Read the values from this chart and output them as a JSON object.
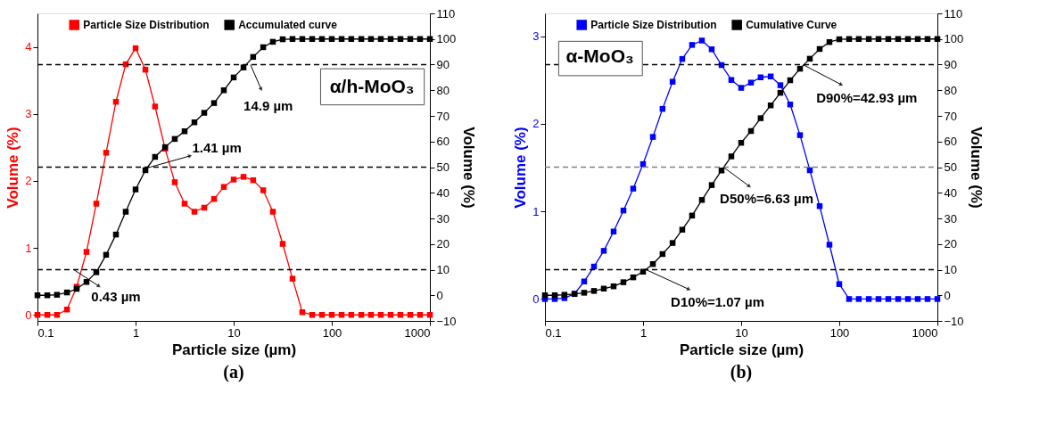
{
  "chart_data": [
    {
      "type": "line",
      "xlabel": "Particle size (µm)",
      "ylabel": "Volume (%)",
      "y2label": "Volume (%)",
      "x": [
        0.1,
        0.126,
        0.158,
        0.2,
        0.251,
        0.316,
        0.398,
        0.501,
        0.631,
        0.794,
        1,
        1.26,
        1.58,
        2,
        2.51,
        3.16,
        3.98,
        5.01,
        6.31,
        7.94,
        10,
        12.6,
        15.8,
        20,
        25.1,
        31.6,
        39.8,
        50.1,
        63.1,
        79.4,
        100,
        126,
        158,
        200,
        251,
        316,
        398,
        501,
        631,
        794,
        1000
      ],
      "series": [
        {
          "name": "Particle Size Distribution",
          "color": "#ff0000",
          "values": [
            0,
            0,
            0,
            0.08,
            0.42,
            0.94,
            1.66,
            2.42,
            3.18,
            3.74,
            3.98,
            3.66,
            3.11,
            2.48,
            1.98,
            1.66,
            1.54,
            1.6,
            1.73,
            1.91,
            2.02,
            2.06,
            2.01,
            1.86,
            1.54,
            1.06,
            0.54,
            0.04,
            0,
            0,
            0,
            0,
            0,
            0,
            0,
            0,
            0,
            0,
            0,
            0,
            0
          ]
        },
        {
          "name": "Accumulated curve",
          "color": "#000000",
          "axis": "y2",
          "values": [
            0,
            0,
            0.2,
            1.1,
            2.5,
            5.2,
            9,
            15.8,
            23.7,
            32.6,
            41.3,
            48.8,
            54,
            57.8,
            61,
            64,
            67.5,
            71.2,
            75,
            80,
            85,
            88.9,
            93,
            96.8,
            98.9,
            99.9,
            100,
            100,
            100,
            100,
            100,
            100,
            100,
            100,
            100,
            100,
            100,
            100,
            100,
            100,
            100
          ]
        }
      ],
      "xlim": [
        0.1,
        1000
      ],
      "xticks": [
        0.1,
        1,
        10,
        100,
        1000
      ],
      "log": "x",
      "ylim": [
        -0.09,
        4.5
      ],
      "yticks": [
        0,
        1,
        2,
        3,
        4
      ],
      "y2lim": [
        -10,
        110
      ],
      "y2ticks": [
        -10,
        0,
        10,
        20,
        30,
        40,
        50,
        60,
        70,
        80,
        90,
        100,
        110
      ],
      "ref_lines": [
        {
          "axis": "y2",
          "value": 90,
          "label": null,
          "color": "#000000",
          "line_style": "dashed"
        },
        {
          "axis": "y2",
          "value": 50,
          "label": null,
          "color": "#000000",
          "line_style": "dashed"
        },
        {
          "axis": "y2",
          "value": 10,
          "label": null,
          "color": "#000000",
          "line_style": "dashed"
        }
      ],
      "annotations": [
        "(a)",
        "α/h-MoO₃",
        "14.9 µm",
        "1.41 µm",
        "0.43 µm"
      ],
      "grid": false,
      "legend": "top",
      "marker": "square",
      "line_style": "solid"
    },
    {
      "type": "line",
      "xlabel": "Particle size (µm)",
      "ylabel": "Volume (%)",
      "y2label": "Volume (%)",
      "x": [
        0.1,
        0.126,
        0.158,
        0.2,
        0.251,
        0.316,
        0.398,
        0.501,
        0.631,
        0.794,
        1,
        1.26,
        1.58,
        2,
        2.51,
        3.16,
        3.98,
        5.01,
        6.31,
        7.94,
        10,
        12.6,
        15.8,
        20,
        25.1,
        31.6,
        39.8,
        50.1,
        63.1,
        79.4,
        100,
        126,
        158,
        200,
        251,
        316,
        398,
        501,
        631,
        794,
        1000
      ],
      "series": [
        {
          "name": "Particle Size Distribution",
          "color": "#0000ff",
          "values": [
            0,
            0,
            0.01,
            0.06,
            0.2,
            0.37,
            0.55,
            0.77,
            1.01,
            1.26,
            1.54,
            1.85,
            2.17,
            2.48,
            2.74,
            2.9,
            2.95,
            2.85,
            2.67,
            2.5,
            2.41,
            2.47,
            2.53,
            2.54,
            2.44,
            2.22,
            1.87,
            1.47,
            1.06,
            0.62,
            0.17,
            0,
            0,
            0,
            0,
            0,
            0,
            0,
            0,
            0,
            0
          ]
        },
        {
          "name": "Cumulative Curve",
          "color": "#000000",
          "axis": "y2",
          "values": [
            0,
            0,
            0.2,
            0.5,
            1.0,
            1.7,
            2.6,
            3.5,
            5.1,
            7.0,
            9.2,
            12.2,
            16.1,
            20.4,
            25.6,
            31.1,
            37.2,
            43,
            48.7,
            54.2,
            59.5,
            64.1,
            69.1,
            74.1,
            79,
            83.9,
            88.4,
            92.3,
            96.1,
            98.8,
            99.9,
            100,
            100,
            100,
            100,
            100,
            100,
            100,
            100,
            100,
            100
          ]
        }
      ],
      "xlim": [
        0.1,
        1000
      ],
      "xticks": [
        0.1,
        1,
        10,
        100,
        1000
      ],
      "log": "x",
      "ylim": [
        -0.25,
        3.26
      ],
      "yticks": [
        0,
        1,
        2,
        3
      ],
      "y2lim": [
        -10,
        110
      ],
      "y2ticks": [
        -10,
        0,
        10,
        20,
        30,
        40,
        50,
        60,
        70,
        80,
        90,
        100,
        110
      ],
      "ref_lines": [
        {
          "axis": "y2",
          "value": 90,
          "label": null,
          "color": "#000000",
          "line_style": "dashed"
        },
        {
          "axis": "y2",
          "value": 50,
          "label": null,
          "color": "#808080",
          "line_style": "dashed"
        },
        {
          "axis": "y2",
          "value": 10,
          "label": null,
          "color": "#000000",
          "line_style": "dashed"
        }
      ],
      "annotations": [
        "(b)",
        "α-MoO₃",
        "D90%=42.93 µm",
        "D50%=6.63 µm",
        "D10%=1.07 µm"
      ],
      "grid": false,
      "legend": "top",
      "marker": "square",
      "line_style": "solid"
    }
  ]
}
